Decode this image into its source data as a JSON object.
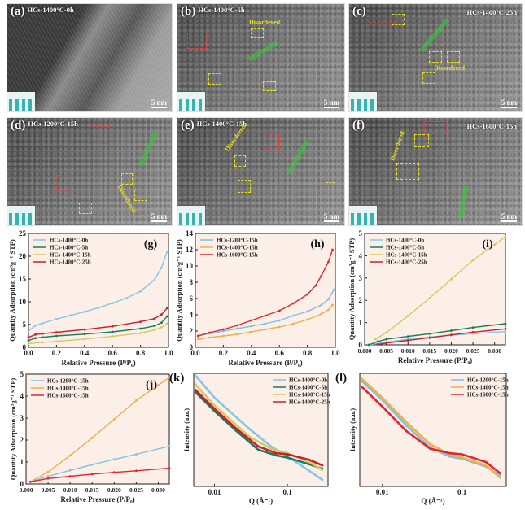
{
  "tem_panels": [
    {
      "letter": "(a)",
      "sample": "HCs-1400°C-0h",
      "scale": "5 nm"
    },
    {
      "letter": "(b)",
      "sample": "HCs-1400°C-5h",
      "scale": "5 nm",
      "annotation": "Disordered"
    },
    {
      "letter": "(c)",
      "sample": "HCs-1400°C-25h",
      "scale": "5 nm",
      "annotation": "Disordered"
    },
    {
      "letter": "(d)",
      "sample": "HCs-1200°C-15h",
      "scale": "5 nm",
      "annotation": "Disordered"
    },
    {
      "letter": "(e)",
      "sample": "HCs-1400°C-15h",
      "scale": "5 nm",
      "annotation": "Disordered"
    },
    {
      "letter": "(f)",
      "sample": "HCs-1600°C-15h",
      "scale": "5 nm",
      "annotation": "Disordered"
    }
  ],
  "colors": {
    "c0h": "#86c7e8",
    "c5h": "#1f7a5c",
    "c15h": "#d9c760",
    "c25h": "#c8202e",
    "c1200": "#7fc0e6",
    "c1400": "#f0b04a",
    "c1600": "#e3262e",
    "plot_bg": "#fbefe7"
  },
  "chart_data": [
    {
      "id": "g",
      "panel": "(g)",
      "type": "line",
      "xlabel": "Relative Pressure (P/P₀)",
      "ylabel": "Quantity Adsorption (cm³g⁻¹ STP)",
      "xlim": [
        0,
        1
      ],
      "ylim": [
        0,
        25
      ],
      "xticks": [
        0,
        0.2,
        0.4,
        0.6,
        0.8,
        1.0
      ],
      "xticklabels": [
        "0.0",
        "0.2",
        "0.4",
        "0.6",
        "0.8",
        "1.0"
      ],
      "yticks": [
        0,
        5,
        10,
        15,
        20,
        25
      ],
      "yticklabels": [
        "0",
        "5",
        "10",
        "15",
        "20",
        "25"
      ],
      "legend": "top-left",
      "series": [
        {
          "name": "HCs-1400°C-0h",
          "color": "c0h",
          "x": [
            0,
            0.05,
            0.1,
            0.2,
            0.3,
            0.4,
            0.5,
            0.6,
            0.7,
            0.8,
            0.9,
            0.95,
            0.99
          ],
          "y": [
            3.6,
            4.8,
            5.3,
            6.2,
            7,
            7.8,
            8.7,
            9.7,
            10.8,
            12.3,
            14.8,
            17.5,
            21
          ]
        },
        {
          "name": "HCs-1400°C-5h",
          "color": "c5h",
          "x": [
            0,
            0.05,
            0.1,
            0.2,
            0.4,
            0.6,
            0.8,
            0.9,
            0.95,
            0.99
          ],
          "y": [
            1.5,
            2,
            2.2,
            2.5,
            2.9,
            3.4,
            4.1,
            4.7,
            5.4,
            6.8
          ]
        },
        {
          "name": "HCs-1400°C-15h",
          "color": "c15h",
          "x": [
            0,
            0.1,
            0.2,
            0.4,
            0.6,
            0.8,
            0.9,
            0.95,
            0.99
          ],
          "y": [
            0.8,
            1.1,
            1.3,
            1.8,
            2.4,
            3.1,
            3.8,
            4.4,
            5.2
          ]
        },
        {
          "name": "HCs-1400°C-25h",
          "color": "c25h",
          "x": [
            0,
            0.05,
            0.1,
            0.2,
            0.4,
            0.6,
            0.8,
            0.9,
            0.95,
            0.99
          ],
          "y": [
            2.2,
            2.8,
            3,
            3.3,
            3.9,
            4.6,
            5.6,
            6.3,
            7.2,
            8.6
          ]
        }
      ]
    },
    {
      "id": "h",
      "panel": "(h)",
      "type": "line",
      "xlabel": "Relative Pressure (P/P₀)",
      "ylabel": "Quantity Adsorption (cm³g⁻¹ STP)",
      "xlim": [
        0,
        1
      ],
      "ylim": [
        0,
        14
      ],
      "xticks": [
        0,
        0.2,
        0.4,
        0.6,
        0.8,
        1.0
      ],
      "xticklabels": [
        "0.0",
        "0.2",
        "0.4",
        "0.6",
        "0.8",
        "1.0"
      ],
      "yticks": [
        0,
        2,
        4,
        6,
        8,
        10,
        12,
        14
      ],
      "yticklabels": [
        "0",
        "2",
        "4",
        "6",
        "8",
        "10",
        "12",
        "14"
      ],
      "legend": "top-left",
      "series": [
        {
          "name": "HCs-1200°C-15h",
          "color": "c1200",
          "x": [
            0.02,
            0.1,
            0.2,
            0.3,
            0.4,
            0.5,
            0.6,
            0.7,
            0.8,
            0.9,
            0.95,
            0.99
          ],
          "y": [
            1.4,
            1.7,
            2,
            2.3,
            2.6,
            2.9,
            3.3,
            3.9,
            4.4,
            5.2,
            5.9,
            7.1
          ]
        },
        {
          "name": "HCs-1400°C-15h",
          "color": "c1400",
          "x": [
            0.02,
            0.1,
            0.2,
            0.3,
            0.4,
            0.5,
            0.6,
            0.7,
            0.8,
            0.9,
            0.95,
            0.98
          ],
          "y": [
            1.0,
            1.2,
            1.4,
            1.6,
            1.9,
            2.2,
            2.5,
            2.9,
            3.4,
            4.1,
            4.6,
            5.2
          ]
        },
        {
          "name": "HCs-1600°C-15h",
          "color": "c1600",
          "x": [
            0.02,
            0.1,
            0.2,
            0.3,
            0.4,
            0.5,
            0.6,
            0.7,
            0.8,
            0.86,
            0.9,
            0.95,
            0.98
          ],
          "y": [
            1.4,
            1.8,
            2.2,
            2.7,
            3.3,
            3.9,
            4.5,
            5.4,
            6.5,
            7.6,
            8.8,
            10.5,
            12
          ]
        }
      ]
    },
    {
      "id": "i",
      "panel": "(i)",
      "type": "line",
      "xlabel": "Relative Pressure (P/P₀)",
      "ylabel": "Quantity Adsorption (cm³g⁻¹ STP)",
      "xlim": [
        0,
        0.0325
      ],
      "ylim": [
        0,
        5
      ],
      "xticks": [
        0,
        0.005,
        0.01,
        0.015,
        0.02,
        0.025,
        0.03
      ],
      "xticklabels": [
        "0.000",
        "0.005",
        "0.010",
        "0.015",
        "0.020",
        "0.025",
        "0.030"
      ],
      "yticks": [
        0,
        1,
        2,
        3,
        4,
        5
      ],
      "yticklabels": [
        "0",
        "1",
        "2",
        "3",
        "4",
        "5"
      ],
      "legend": "top-left",
      "series": [
        {
          "name": "HCs-1400°C-0h",
          "color": "c0h",
          "x": [
            0.001,
            0.005,
            0.01,
            0.015,
            0.02,
            0.025,
            0.0325
          ],
          "y": [
            0,
            0.12,
            0.25,
            0.35,
            0.43,
            0.5,
            0.6
          ]
        },
        {
          "name": "HCs-1400°C-5h",
          "color": "c5h",
          "x": [
            0.001,
            0.003,
            0.005,
            0.01,
            0.015,
            0.02,
            0.025,
            0.0325
          ],
          "y": [
            0,
            0.15,
            0.25,
            0.38,
            0.5,
            0.64,
            0.78,
            0.95
          ]
        },
        {
          "name": "HCs-1400°C-15h",
          "color": "c15h",
          "x": [
            0.0025,
            0.005,
            0.01,
            0.015,
            0.02,
            0.025,
            0.03,
            0.0325
          ],
          "y": [
            0.25,
            0.55,
            1.3,
            2.1,
            2.95,
            3.8,
            4.5,
            4.85
          ]
        },
        {
          "name": "HCs-1400°C-25h",
          "color": "c25h",
          "x": [
            0.003,
            0.005,
            0.01,
            0.015,
            0.02,
            0.025,
            0.0325
          ],
          "y": [
            0.02,
            0.08,
            0.2,
            0.32,
            0.45,
            0.57,
            0.72
          ]
        }
      ]
    },
    {
      "id": "j",
      "panel": "(j)",
      "type": "line",
      "xlabel": "Relative Pressure (P/P₀)",
      "ylabel": "Quantity Adsorption (cm³g⁻¹ STP)",
      "xlim": [
        0,
        0.0325
      ],
      "ylim": [
        0,
        5
      ],
      "xticks": [
        0,
        0.005,
        0.01,
        0.015,
        0.02,
        0.025,
        0.03
      ],
      "xticklabels": [
        "0.000",
        "0.005",
        "0.010",
        "0.015",
        "0.020",
        "0.025",
        "0.030"
      ],
      "yticks": [
        0,
        1,
        2,
        3,
        4,
        5
      ],
      "yticklabels": [
        "0",
        "1",
        "2",
        "3",
        "4",
        "5"
      ],
      "legend": "top-left",
      "series": [
        {
          "name": "HCs-1200°C-15h",
          "color": "c1200",
          "x": [
            0.001,
            0.005,
            0.01,
            0.015,
            0.02,
            0.025,
            0.0325
          ],
          "y": [
            0.1,
            0.35,
            0.62,
            0.88,
            1.12,
            1.35,
            1.72
          ]
        },
        {
          "name": "HCs-1400°C-15h",
          "color": "c1400",
          "x": [
            0.001,
            0.005,
            0.01,
            0.015,
            0.02,
            0.025,
            0.03,
            0.0325
          ],
          "y": [
            0.1,
            0.55,
            1.3,
            2.1,
            2.95,
            3.8,
            4.5,
            4.85
          ]
        },
        {
          "name": "HCs-1600°C-15h",
          "color": "c1600",
          "x": [
            0.001,
            0.005,
            0.01,
            0.015,
            0.02,
            0.025,
            0.0325
          ],
          "y": [
            0.1,
            0.25,
            0.35,
            0.45,
            0.53,
            0.6,
            0.72
          ]
        }
      ]
    },
    {
      "id": "k",
      "panel": "(k)",
      "type": "line",
      "xscale": "log",
      "xlabel": "Q (Å⁻¹)",
      "ylabel": "Intensity (a.u.)",
      "xlim": [
        0.0052,
        0.36
      ],
      "ylim": [
        0,
        1.02
      ],
      "xticks": [
        0.01,
        0.1
      ],
      "xticklabels": [
        "0.01",
        "0.1"
      ],
      "yticks": [],
      "yticklabels": [],
      "legend": "top-right",
      "series": [
        {
          "name": "HCs-1400°C-0h",
          "color": "c0h",
          "x": [
            0.0055,
            0.01,
            0.03,
            0.06,
            0.1,
            0.2,
            0.3
          ],
          "y": [
            1.0,
            0.8,
            0.52,
            0.36,
            0.27,
            0.14,
            0.06
          ]
        },
        {
          "name": "HCs-1400°C-5h",
          "color": "c5h",
          "x": [
            0.0055,
            0.01,
            0.02,
            0.04,
            0.07,
            0.1,
            0.2,
            0.3
          ],
          "y": [
            0.85,
            0.68,
            0.5,
            0.33,
            0.28,
            0.26,
            0.2,
            0.16
          ]
        },
        {
          "name": "HCs-1400°C-15h",
          "color": "c15h",
          "x": [
            0.0055,
            0.01,
            0.03,
            0.06,
            0.1,
            0.2,
            0.3
          ],
          "y": [
            0.92,
            0.73,
            0.45,
            0.34,
            0.3,
            0.22,
            0.15
          ]
        },
        {
          "name": "HCs-1400°C-25h",
          "color": "c25h",
          "x": [
            0.0055,
            0.01,
            0.02,
            0.04,
            0.07,
            0.1,
            0.2,
            0.3
          ],
          "y": [
            0.87,
            0.7,
            0.52,
            0.36,
            0.3,
            0.29,
            0.24,
            0.19
          ]
        }
      ]
    },
    {
      "id": "l",
      "panel": "(l)",
      "type": "line",
      "xscale": "log",
      "xlabel": "Q (Å⁻¹)",
      "ylabel": "Intensity (a.u.)",
      "xlim": [
        0.0052,
        0.36
      ],
      "ylim": [
        0,
        1.02
      ],
      "xticks": [
        0.01,
        0.1
      ],
      "xticklabels": [
        "0.01",
        "0.1"
      ],
      "yticks": [],
      "yticklabels": [],
      "legend": "top-right",
      "series": [
        {
          "name": "HCs-1200°C-15h",
          "color": "c1200",
          "x": [
            0.0055,
            0.01,
            0.02,
            0.04,
            0.07,
            0.1,
            0.2,
            0.3
          ],
          "y": [
            0.95,
            0.78,
            0.55,
            0.35,
            0.27,
            0.25,
            0.18,
            0.1
          ]
        },
        {
          "name": "HCs-1400°C-15h",
          "color": "c1400",
          "x": [
            0.0055,
            0.01,
            0.02,
            0.04,
            0.07,
            0.1,
            0.2,
            0.3
          ],
          "y": [
            0.97,
            0.8,
            0.58,
            0.38,
            0.29,
            0.26,
            0.19,
            0.08
          ]
        },
        {
          "name": "HCs-1600°C-15h",
          "color": "c1600",
          "x": [
            0.0055,
            0.01,
            0.02,
            0.04,
            0.07,
            0.1,
            0.2,
            0.3
          ],
          "y": [
            0.9,
            0.72,
            0.5,
            0.34,
            0.3,
            0.29,
            0.22,
            0.12
          ]
        }
      ]
    }
  ]
}
